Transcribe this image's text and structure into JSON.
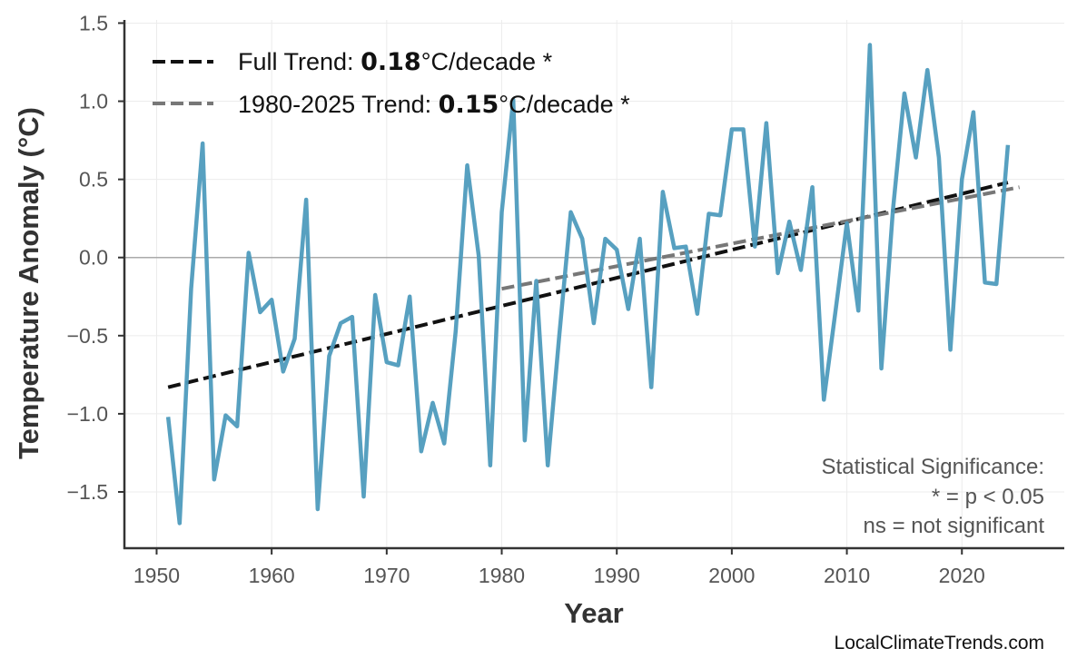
{
  "chart_data": {
    "type": "line",
    "xlabel": "Year",
    "ylabel": "Temperature Anomaly (°C)",
    "xlim": [
      1947.2,
      2028.9
    ],
    "ylim": [
      -1.86,
      1.52
    ],
    "xticks": [
      1950,
      1960,
      1970,
      1980,
      1990,
      2000,
      2010,
      2020
    ],
    "yticks": [
      -1.5,
      -1.0,
      -0.5,
      0.0,
      0.5,
      1.0,
      1.5
    ],
    "ytick_labels": [
      "−1.5",
      "−1.0",
      "−0.5",
      "0.0",
      "0.5",
      "1.0",
      "1.5"
    ],
    "grid": true,
    "legend_position": "top-left",
    "x": [
      1951,
      1952,
      1953,
      1954,
      1955,
      1956,
      1957,
      1958,
      1959,
      1960,
      1961,
      1962,
      1963,
      1964,
      1965,
      1966,
      1967,
      1968,
      1969,
      1970,
      1971,
      1972,
      1973,
      1974,
      1975,
      1976,
      1977,
      1978,
      1979,
      1980,
      1981,
      1982,
      1983,
      1984,
      1985,
      1986,
      1987,
      1988,
      1989,
      1990,
      1991,
      1992,
      1993,
      1994,
      1995,
      1996,
      1997,
      1998,
      1999,
      2000,
      2001,
      2002,
      2003,
      2004,
      2005,
      2006,
      2007,
      2008,
      2009,
      2010,
      2011,
      2012,
      2013,
      2014,
      2015,
      2016,
      2017,
      2018,
      2019,
      2020,
      2021,
      2022,
      2023,
      2024
    ],
    "series": [
      {
        "color": "#4e9bbd",
        "values": [
          -1.02,
          -1.7,
          -0.2,
          0.73,
          -1.42,
          -1.01,
          -1.08,
          0.03,
          -0.35,
          -0.27,
          -0.73,
          -0.52,
          0.37,
          -1.61,
          -0.63,
          -0.42,
          -0.38,
          -1.53,
          -0.24,
          -0.67,
          -0.69,
          -0.25,
          -1.24,
          -0.93,
          -1.19,
          -0.47,
          0.59,
          0.01,
          -1.33,
          0.29,
          1.01,
          -1.17,
          -0.15,
          -1.33,
          -0.5,
          0.29,
          0.12,
          -0.42,
          0.12,
          0.05,
          -0.33,
          0.12,
          -0.83,
          0.42,
          0.06,
          0.07,
          -0.36,
          0.28,
          0.27,
          0.82,
          0.82,
          0.07,
          0.86,
          -0.1,
          0.23,
          -0.08,
          0.45,
          -0.91,
          -0.35,
          0.22,
          -0.34,
          1.36,
          -0.71,
          0.3,
          1.05,
          0.64,
          1.2,
          0.64,
          -0.59,
          0.5,
          0.93,
          -0.16,
          -0.17,
          0.72
        ]
      }
    ],
    "trends": [
      {
        "label_pre": "Full Trend: ",
        "rate": "0.18",
        "label_post": "°C/decade *",
        "color": "#111111",
        "x": [
          1951,
          2024
        ],
        "y": [
          -0.83,
          0.48
        ]
      },
      {
        "label_pre": "1980-2025 Trend: ",
        "rate": "0.15",
        "label_post": "°C/decade *",
        "color": "#777777",
        "x": [
          1980,
          2025
        ],
        "y": [
          -0.2,
          0.45
        ]
      }
    ],
    "annotation": [
      "Statistical Significance:",
      "* = p < 0.05",
      "ns = not significant"
    ],
    "watermark": "LocalClimateTrends.com"
  }
}
